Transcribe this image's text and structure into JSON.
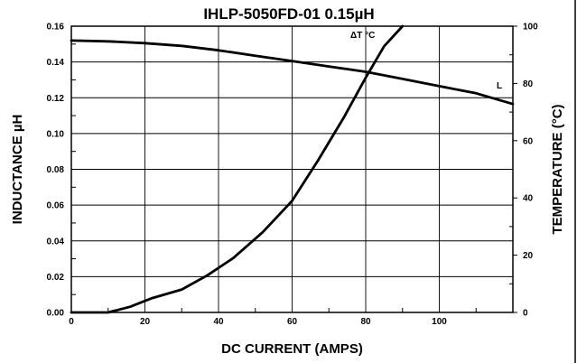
{
  "chart_data": {
    "type": "line",
    "title": "IHLP-5050FD-01 0.15µH",
    "xlabel": "DC CURRENT (AMPS)",
    "ylabel_left": "INDUCTANCE µH",
    "ylabel_right": "TEMPERATURE (°C)",
    "xlim": [
      0,
      120
    ],
    "ylim_left": [
      0,
      0.16
    ],
    "ylim_right": [
      0,
      100
    ],
    "x_ticks": [
      0,
      20,
      40,
      60,
      80,
      100
    ],
    "x_tick_labels": [
      "0",
      "20",
      "40",
      "60",
      "80",
      "100"
    ],
    "y_left_ticks": [
      0,
      0.02,
      0.04,
      0.06,
      0.08,
      0.1,
      0.12,
      0.14,
      0.16
    ],
    "y_left_tick_labels": [
      "0.00",
      "0.02",
      "0.04",
      "0.06",
      "0.08",
      "0.10",
      "0.12",
      "0.14",
      "0.16"
    ],
    "y_right_ticks": [
      0,
      20,
      40,
      60,
      80,
      100
    ],
    "y_right_tick_labels": [
      "0",
      "20",
      "40",
      "60",
      "80",
      "100"
    ],
    "grid": true,
    "series": [
      {
        "name": "L",
        "axis": "left",
        "color": "#000000",
        "x": [
          0,
          10,
          20,
          30,
          40,
          50,
          60,
          70,
          80,
          90,
          100,
          110,
          120
        ],
        "y": [
          0.152,
          0.1515,
          0.1505,
          0.149,
          0.1465,
          0.1435,
          0.1405,
          0.1375,
          0.1345,
          0.1305,
          0.1265,
          0.1225,
          0.1165
        ]
      },
      {
        "name": "ΔT °C",
        "axis": "right",
        "color": "#000000",
        "x": [
          0,
          10,
          16,
          22,
          30,
          37,
          44,
          52,
          60,
          67,
          74,
          80,
          85,
          90
        ],
        "y": [
          0,
          0,
          2,
          5,
          8,
          13,
          19,
          28,
          39,
          53,
          68,
          82,
          93,
          100
        ]
      }
    ],
    "annotations": [
      "L",
      "ΔT °C"
    ]
  }
}
